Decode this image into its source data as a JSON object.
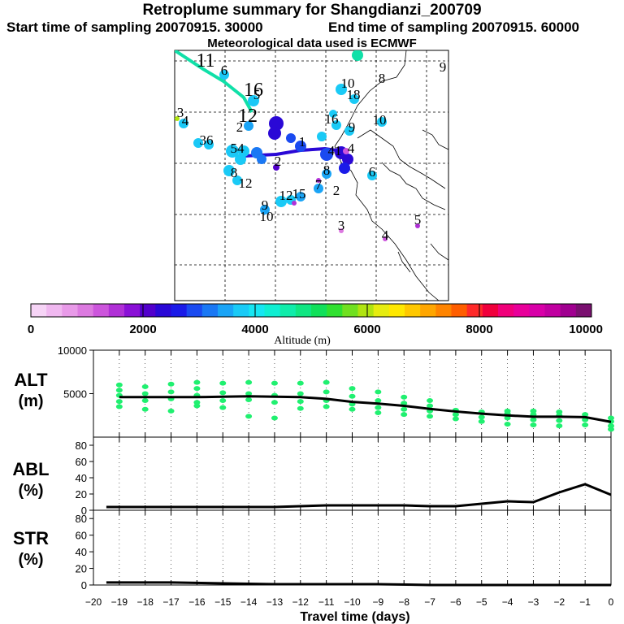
{
  "header": {
    "title": "Retroplume summary for Shangdianzi_200709",
    "start_label": "Start time of sampling 20070915. 30000",
    "end_label": "End time of sampling 20070915. 60000",
    "met_label": "Meteorological data used is ECMWF"
  },
  "colors": {
    "colorbar": [
      "#f6d4f6",
      "#f0b8f0",
      "#e89ae8",
      "#dc7ae0",
      "#cc55dc",
      "#b030d6",
      "#8a10d6",
      "#5200cc",
      "#2a08d6",
      "#1a1ae8",
      "#1a4af0",
      "#1a78f4",
      "#1aa4f6",
      "#1acaf6",
      "#16e6f2",
      "#10eed2",
      "#10ecaa",
      "#10e682",
      "#10e05a",
      "#30e030",
      "#70e020",
      "#b0e410",
      "#e6ec10",
      "#ffe800",
      "#ffc800",
      "#ffa600",
      "#ff8400",
      "#ff5e00",
      "#ff2a2a",
      "#f0003c",
      "#f0007a",
      "#e8009a",
      "#d800a8",
      "#c000a0",
      "#a00090",
      "#7a1070"
    ],
    "summary_line": "#000000",
    "summary_dots": "#20f070"
  },
  "colorbar": {
    "tick_labels": [
      "0",
      "2000",
      "4000",
      "6000",
      "8000",
      "10000"
    ],
    "label": "Altitude (m)"
  },
  "map": {
    "labels": [
      {
        "text": "11",
        "color": "#000000",
        "size": "big",
        "x": 253,
        "y": 82
      },
      {
        "text": "16",
        "color": "#000000",
        "size": "big",
        "x": 312,
        "y": 118
      },
      {
        "text": "12",
        "color": "#000000",
        "size": "big",
        "x": 305,
        "y": 150
      },
      {
        "text": "6",
        "color": "#000000",
        "size": "small",
        "x": 276,
        "y": 92
      },
      {
        "text": "5",
        "color": "#000000",
        "size": "small",
        "x": 316,
        "y": 122
      },
      {
        "text": "8",
        "color": "#000000",
        "size": "small",
        "x": 470,
        "y": 102
      },
      {
        "text": "9",
        "color": "#000000",
        "size": "small",
        "x": 545,
        "y": 88
      },
      {
        "text": "10",
        "color": "#000000",
        "size": "small",
        "x": 428,
        "y": 108
      },
      {
        "text": "18",
        "color": "#000000",
        "size": "small",
        "x": 435,
        "y": 122
      },
      {
        "text": "3",
        "color": "#000000",
        "size": "small",
        "x": 222,
        "y": 144
      },
      {
        "text": "4",
        "color": "#000000",
        "size": "small",
        "x": 228,
        "y": 154
      },
      {
        "text": "2",
        "color": "#000000",
        "size": "small",
        "x": 295,
        "y": 162
      },
      {
        "text": "16",
        "color": "#000000",
        "size": "small",
        "x": 408,
        "y": 152
      },
      {
        "text": "9",
        "color": "#000000",
        "size": "small",
        "x": 433,
        "y": 162
      },
      {
        "text": "10",
        "color": "#000000",
        "size": "small",
        "x": 467,
        "y": 153
      },
      {
        "text": "36",
        "color": "#000000",
        "size": "small",
        "x": 254,
        "y": 178
      },
      {
        "text": "54",
        "color": "#000000",
        "size": "small",
        "x": 292,
        "y": 188
      },
      {
        "text": "1",
        "color": "#000000",
        "size": "small",
        "x": 372,
        "y": 180
      },
      {
        "text": "41",
        "color": "#000000",
        "size": "small",
        "x": 412,
        "y": 191
      },
      {
        "text": "4",
        "color": "#000000",
        "size": "small",
        "x": 432,
        "y": 188
      },
      {
        "text": "8",
        "color": "#000000",
        "size": "small",
        "x": 288,
        "y": 218
      },
      {
        "text": "12",
        "color": "#000000",
        "size": "small",
        "x": 302,
        "y": 231
      },
      {
        "text": "6",
        "color": "#000000",
        "size": "small",
        "x": 458,
        "y": 217
      },
      {
        "text": "8",
        "color": "#000000",
        "size": "small",
        "x": 402,
        "y": 215
      },
      {
        "text": "7",
        "color": "#000000",
        "size": "small",
        "x": 392,
        "y": 233
      },
      {
        "text": "2",
        "color": "#000000",
        "size": "small",
        "x": 414,
        "y": 240
      },
      {
        "text": "12",
        "color": "#000000",
        "size": "small",
        "x": 352,
        "y": 246
      },
      {
        "text": "15",
        "color": "#000000",
        "size": "small",
        "x": 368,
        "y": 244
      },
      {
        "text": "9",
        "color": "#000000",
        "size": "small",
        "x": 326,
        "y": 258
      },
      {
        "text": "10",
        "color": "#000000",
        "size": "small",
        "x": 328,
        "y": 272
      },
      {
        "text": "3",
        "color": "#000000",
        "size": "small",
        "x": 420,
        "y": 283
      },
      {
        "text": "5",
        "color": "#000000",
        "size": "small",
        "x": 514,
        "y": 276
      },
      {
        "text": "4",
        "color": "#000000",
        "size": "small",
        "x": 474,
        "y": 295
      },
      {
        "text": "2",
        "color": "#000000",
        "size": "small",
        "x": 342,
        "y": 204
      }
    ],
    "dots": [
      {
        "color": "#10e0a8",
        "r": 7,
        "x": 440,
        "y": 68
      },
      {
        "color": "#1ac8f6",
        "r": 7,
        "x": 312,
        "y": 124
      },
      {
        "color": "#1ac8f6",
        "r": 6,
        "x": 276,
        "y": 92
      },
      {
        "color": "#2a08d6",
        "r": 9,
        "x": 340,
        "y": 152
      },
      {
        "color": "#2a08d6",
        "r": 8,
        "x": 338,
        "y": 164
      },
      {
        "color": "#1aa4f6",
        "r": 6,
        "x": 306,
        "y": 155
      },
      {
        "color": "#1ac8f6",
        "r": 6,
        "x": 226,
        "y": 152
      },
      {
        "color": "#b0e410",
        "r": 3,
        "x": 218,
        "y": 146
      },
      {
        "color": "#1ac8f6",
        "r": 6,
        "x": 244,
        "y": 176
      },
      {
        "color": "#1ac8f6",
        "r": 6,
        "x": 257,
        "y": 178
      },
      {
        "color": "#1ac8f6",
        "r": 8,
        "x": 286,
        "y": 186
      },
      {
        "color": "#1ac8f6",
        "r": 7,
        "x": 300,
        "y": 186
      },
      {
        "color": "#1a78f4",
        "r": 7,
        "x": 316,
        "y": 188
      },
      {
        "color": "#1a78f4",
        "r": 6,
        "x": 322,
        "y": 196
      },
      {
        "color": "#1acaf6",
        "r": 7,
        "x": 296,
        "y": 196
      },
      {
        "color": "#1a4af0",
        "r": 6,
        "x": 358,
        "y": 170
      },
      {
        "color": "#1a4af0",
        "r": 7,
        "x": 370,
        "y": 180
      },
      {
        "color": "#1acaf6",
        "r": 6,
        "x": 396,
        "y": 168
      },
      {
        "color": "#1acaf6",
        "r": 5,
        "x": 410,
        "y": 140
      },
      {
        "color": "#1acaf6",
        "r": 6,
        "x": 414,
        "y": 154
      },
      {
        "color": "#1acaf6",
        "r": 6,
        "x": 430,
        "y": 161
      },
      {
        "color": "#1acaf6",
        "r": 6,
        "x": 470,
        "y": 150
      },
      {
        "color": "#1acaf6",
        "r": 7,
        "x": 420,
        "y": 110
      },
      {
        "color": "#1acaf6",
        "r": 6,
        "x": 436,
        "y": 122
      },
      {
        "color": "#1a4af0",
        "r": 8,
        "x": 402,
        "y": 190
      },
      {
        "color": "#2a08d6",
        "r": 8,
        "x": 420,
        "y": 188
      },
      {
        "color": "#2a08d6",
        "r": 7,
        "x": 428,
        "y": 196
      },
      {
        "color": "#cc55dc",
        "r": 4,
        "x": 426,
        "y": 186
      },
      {
        "color": "#1a1ae8",
        "r": 7,
        "x": 424,
        "y": 207
      },
      {
        "color": "#1acaf6",
        "r": 7,
        "x": 282,
        "y": 210
      },
      {
        "color": "#1acaf6",
        "r": 6,
        "x": 292,
        "y": 222
      },
      {
        "color": "#1acaf6",
        "r": 6,
        "x": 458,
        "y": 216
      },
      {
        "color": "#1aa4f6",
        "r": 6,
        "x": 402,
        "y": 214
      },
      {
        "color": "#1aa4f6",
        "r": 6,
        "x": 392,
        "y": 232
      },
      {
        "color": "#1acaf6",
        "r": 7,
        "x": 346,
        "y": 248
      },
      {
        "color": "#1acaf6",
        "r": 6,
        "x": 358,
        "y": 246
      },
      {
        "color": "#1aa4f6",
        "r": 6,
        "x": 370,
        "y": 242
      },
      {
        "color": "#b030d6",
        "r": 3,
        "x": 362,
        "y": 250
      },
      {
        "color": "#1aa4f6",
        "r": 6,
        "x": 326,
        "y": 258
      },
      {
        "color": "#5200cc",
        "r": 4,
        "x": 340,
        "y": 206
      },
      {
        "color": "#dc7ae0",
        "r": 3,
        "x": 420,
        "y": 284
      },
      {
        "color": "#b030d6",
        "r": 3,
        "x": 514,
        "y": 278
      },
      {
        "color": "#cc55dc",
        "r": 3,
        "x": 474,
        "y": 294
      },
      {
        "color": "#b030d6",
        "r": 3,
        "x": 392,
        "y": 222
      }
    ]
  },
  "chart_data": [
    {
      "type": "line",
      "panel": "ALT",
      "ylabel": "ALT (m)",
      "ylim": [
        0,
        10000
      ],
      "yticks": [
        5000,
        10000
      ],
      "x": [
        -19,
        -18,
        -17,
        -16,
        -15,
        -14,
        -13,
        -12,
        -11,
        -10,
        -9,
        -8,
        -7,
        -6,
        -5,
        -4,
        -3,
        -2,
        -1,
        0
      ],
      "values": [
        4600,
        4600,
        4600,
        4600,
        4650,
        4700,
        4650,
        4600,
        4400,
        4050,
        3850,
        3600,
        3250,
        2950,
        2700,
        2500,
        2350,
        2350,
        2300,
        1750
      ],
      "scatter": [
        {
          "x": -19,
          "y": 4100
        },
        {
          "x": -19,
          "y": 4800
        },
        {
          "x": -19,
          "y": 5400
        },
        {
          "x": -19,
          "y": 3500
        },
        {
          "x": -19,
          "y": 6000
        },
        {
          "x": -18,
          "y": 4200
        },
        {
          "x": -18,
          "y": 5000
        },
        {
          "x": -18,
          "y": 3200
        },
        {
          "x": -18,
          "y": 5800
        },
        {
          "x": -17,
          "y": 4400
        },
        {
          "x": -17,
          "y": 5200
        },
        {
          "x": -17,
          "y": 3000
        },
        {
          "x": -17,
          "y": 6100
        },
        {
          "x": -16,
          "y": 4000
        },
        {
          "x": -16,
          "y": 4800
        },
        {
          "x": -16,
          "y": 5600
        },
        {
          "x": -16,
          "y": 3600
        },
        {
          "x": -16,
          "y": 6300
        },
        {
          "x": -15,
          "y": 4200
        },
        {
          "x": -15,
          "y": 5100
        },
        {
          "x": -15,
          "y": 3400
        },
        {
          "x": -15,
          "y": 6200
        },
        {
          "x": -14,
          "y": 4300
        },
        {
          "x": -14,
          "y": 5000
        },
        {
          "x": -14,
          "y": 2400
        },
        {
          "x": -14,
          "y": 6300
        },
        {
          "x": -13,
          "y": 4000
        },
        {
          "x": -13,
          "y": 4800
        },
        {
          "x": -13,
          "y": 2200
        },
        {
          "x": -13,
          "y": 6200
        },
        {
          "x": -12,
          "y": 4100
        },
        {
          "x": -12,
          "y": 5000
        },
        {
          "x": -12,
          "y": 3300
        },
        {
          "x": -12,
          "y": 6200
        },
        {
          "x": -11,
          "y": 4200
        },
        {
          "x": -11,
          "y": 3500
        },
        {
          "x": -11,
          "y": 5200
        },
        {
          "x": -11,
          "y": 6300
        },
        {
          "x": -10,
          "y": 3800
        },
        {
          "x": -10,
          "y": 4700
        },
        {
          "x": -10,
          "y": 3200
        },
        {
          "x": -10,
          "y": 5600
        },
        {
          "x": -9,
          "y": 3400
        },
        {
          "x": -9,
          "y": 4200
        },
        {
          "x": -9,
          "y": 5200
        },
        {
          "x": -9,
          "y": 2800
        },
        {
          "x": -8,
          "y": 3200
        },
        {
          "x": -8,
          "y": 3900
        },
        {
          "x": -8,
          "y": 2600
        },
        {
          "x": -8,
          "y": 4600
        },
        {
          "x": -7,
          "y": 3000
        },
        {
          "x": -7,
          "y": 3600
        },
        {
          "x": -7,
          "y": 2400
        },
        {
          "x": -7,
          "y": 4200
        },
        {
          "x": -6,
          "y": 2600
        },
        {
          "x": -6,
          "y": 3100
        },
        {
          "x": -6,
          "y": 2100
        },
        {
          "x": -5,
          "y": 2300
        },
        {
          "x": -5,
          "y": 2900
        },
        {
          "x": -5,
          "y": 1800
        },
        {
          "x": -4,
          "y": 2200
        },
        {
          "x": -4,
          "y": 2700
        },
        {
          "x": -4,
          "y": 1500
        },
        {
          "x": -4,
          "y": 3000
        },
        {
          "x": -3,
          "y": 2000
        },
        {
          "x": -3,
          "y": 2600
        },
        {
          "x": -3,
          "y": 1400
        },
        {
          "x": -3,
          "y": 3000
        },
        {
          "x": -2,
          "y": 1900
        },
        {
          "x": -2,
          "y": 2500
        },
        {
          "x": -2,
          "y": 1300
        },
        {
          "x": -2,
          "y": 2900
        },
        {
          "x": -1,
          "y": 2000
        },
        {
          "x": -1,
          "y": 2600
        },
        {
          "x": -1,
          "y": 1400
        },
        {
          "x": 0,
          "y": 1300
        },
        {
          "x": 0,
          "y": 1800
        },
        {
          "x": 0,
          "y": 2200
        },
        {
          "x": 0,
          "y": 900
        }
      ]
    },
    {
      "type": "line",
      "panel": "ABL",
      "ylabel": "ABL (%)",
      "ylim": [
        0,
        90
      ],
      "yticks": [
        0,
        20,
        40,
        60,
        80
      ],
      "x": [
        -19.5,
        -18,
        -17,
        -16,
        -15,
        -14,
        -13,
        -12,
        -11,
        -10,
        -9,
        -8,
        -7,
        -6,
        -5,
        -4,
        -3,
        -2,
        -1,
        0
      ],
      "values": [
        4,
        4,
        4,
        4,
        4,
        4,
        4,
        5,
        6,
        6,
        6,
        6,
        5,
        5,
        8,
        11,
        10,
        22,
        32,
        19
      ]
    },
    {
      "type": "line",
      "panel": "STR",
      "ylabel": "STR (%)",
      "ylim": [
        0,
        90
      ],
      "yticks": [
        0,
        20,
        40,
        60,
        80
      ],
      "xlabel": "Travel time (days)",
      "xlim": [
        -20,
        0
      ],
      "xticks": [
        -20,
        -19,
        -18,
        -17,
        -16,
        -15,
        -14,
        -13,
        -12,
        -11,
        -10,
        -9,
        -8,
        -7,
        -6,
        -5,
        -4,
        -3,
        -2,
        -1,
        0
      ],
      "x": [
        -19.5,
        -17,
        -15,
        -13,
        -11,
        -9,
        -7,
        -5,
        -3,
        -1,
        0
      ],
      "values": [
        3,
        3,
        2,
        1,
        1,
        1,
        0,
        0,
        0,
        0,
        0
      ]
    }
  ]
}
